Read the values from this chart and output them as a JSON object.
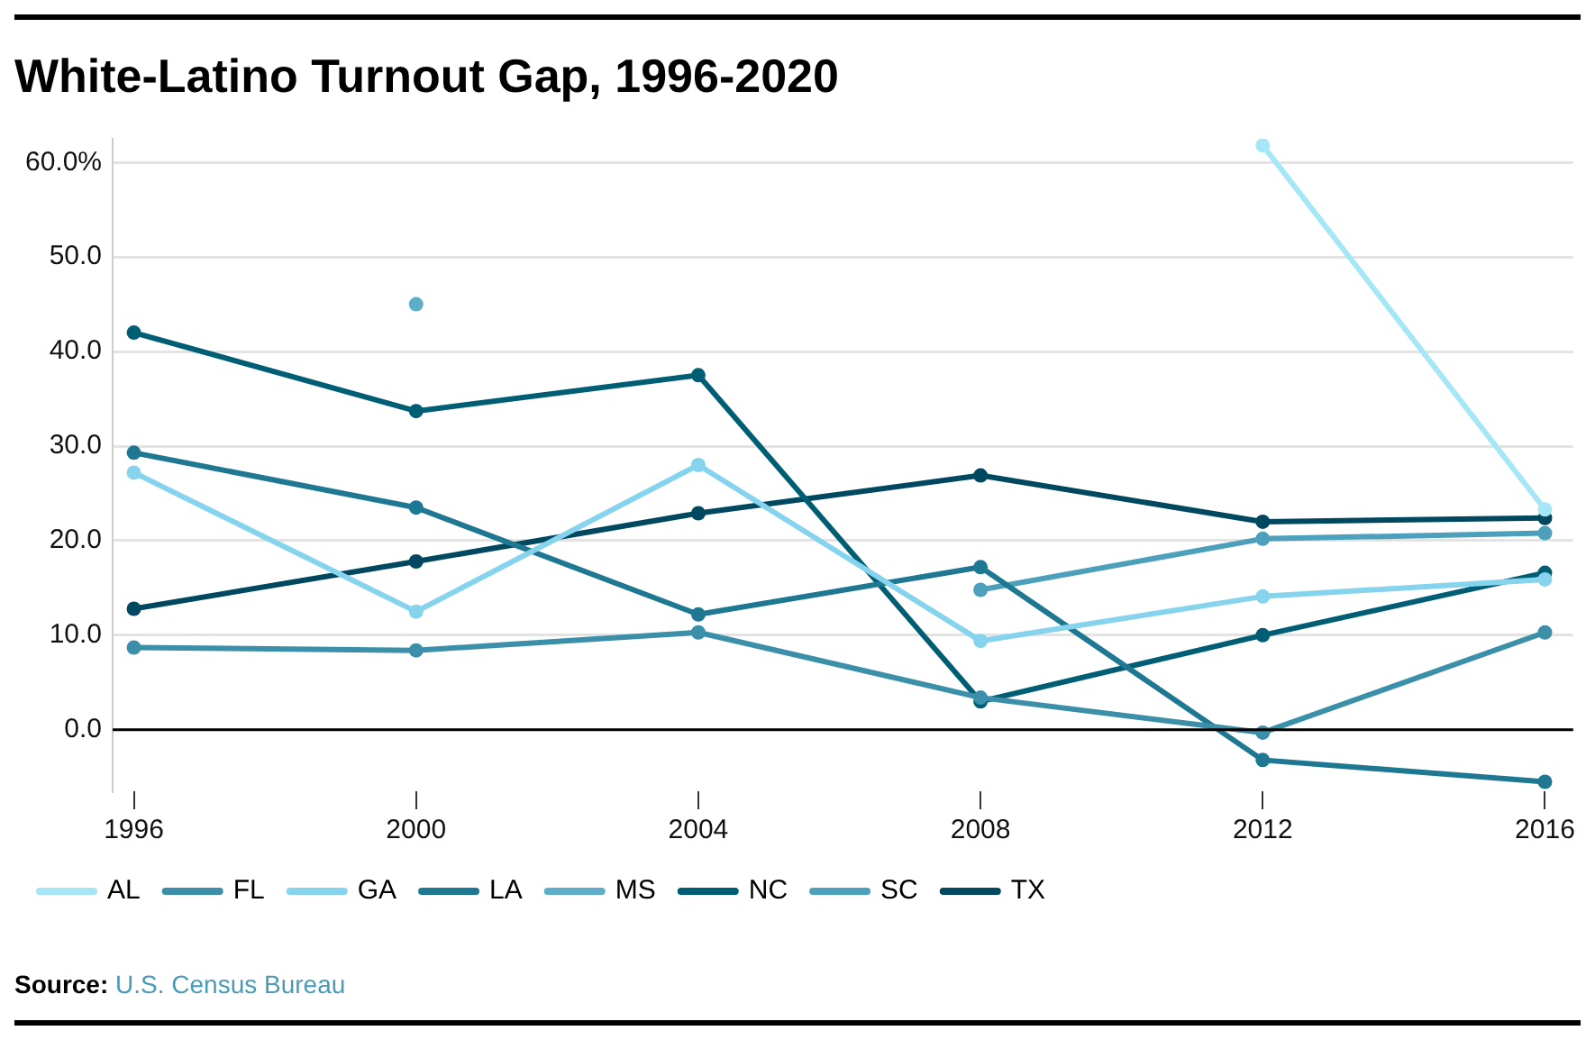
{
  "chart_data": {
    "type": "line",
    "title": "White-Latino Turnout Gap, 1996-2020",
    "x": [
      1996,
      2000,
      2004,
      2008,
      2012,
      2016
    ],
    "series": [
      {
        "name": "AL",
        "color": "#a5e6f7",
        "values": [
          null,
          null,
          null,
          null,
          61.8,
          23.3
        ]
      },
      {
        "name": "FL",
        "color": "#3b8fa9",
        "values": [
          8.7,
          8.4,
          10.3,
          3.4,
          -0.3,
          10.3
        ]
      },
      {
        "name": "GA",
        "color": "#86d3ee",
        "values": [
          27.2,
          12.5,
          28,
          9.4,
          14.1,
          15.9
        ]
      },
      {
        "name": "LA",
        "color": "#1e7891",
        "values": [
          29.3,
          23.5,
          12.2,
          17.2,
          -3.2,
          -5.5
        ]
      },
      {
        "name": "MS",
        "color": "#5eaec9",
        "values": [
          null,
          45,
          null,
          null,
          null,
          null
        ]
      },
      {
        "name": "NC",
        "color": "#005e74",
        "values": [
          42,
          33.7,
          37.5,
          3,
          10,
          16.6
        ]
      },
      {
        "name": "SC",
        "color": "#4da0bb",
        "values": [
          null,
          null,
          null,
          14.8,
          20.2,
          20.8
        ]
      },
      {
        "name": "TX",
        "color": "#00485f",
        "values": [
          12.8,
          17.8,
          22.9,
          26.9,
          22,
          22.4
        ]
      }
    ],
    "xlim": [
      1995.7,
      2016.4
    ],
    "xticks": [
      1996,
      2000,
      2004,
      2008,
      2012,
      2016
    ],
    "ylim": [
      -6.5,
      62.5
    ],
    "yticks": [
      {
        "value": 0,
        "label": "0.0"
      },
      {
        "value": 10,
        "label": "10.0"
      },
      {
        "value": 20,
        "label": "20.0"
      },
      {
        "value": 30,
        "label": "30.0"
      },
      {
        "value": 40,
        "label": "40.0"
      },
      {
        "value": 50,
        "label": "50.0"
      },
      {
        "value": 60,
        "label": "60.0%"
      }
    ],
    "ref_lines": [
      {
        "axis": "y",
        "value": 0,
        "color": "#000000"
      }
    ],
    "grid": "y",
    "legend": "bottom left",
    "marker": "circle",
    "line_style": "solid",
    "annotations": [
      "Source: U.S. Census Bureau"
    ]
  }
}
